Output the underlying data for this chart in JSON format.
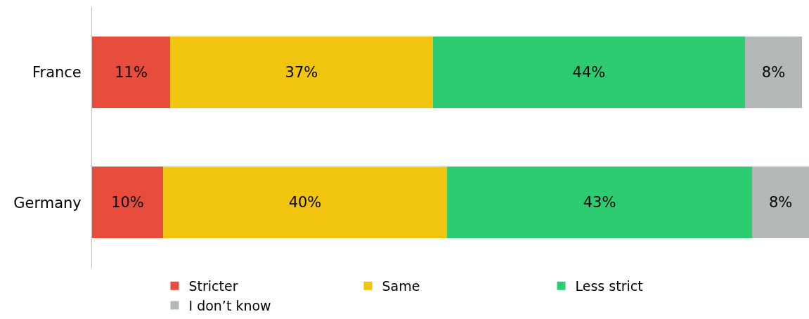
{
  "chart_data": {
    "type": "bar",
    "orientation": "horizontal",
    "stacked": true,
    "categories": [
      "France",
      "Germany"
    ],
    "series": [
      {
        "name": "Stricter",
        "color": "#e74c3c",
        "values": [
          11,
          10
        ],
        "value_labels": [
          "11%",
          "10%"
        ]
      },
      {
        "name": "Same",
        "color": "#f1c40f",
        "values": [
          37,
          40
        ],
        "value_labels": [
          "37%",
          "40%"
        ]
      },
      {
        "name": "Less strict",
        "color": "#2ecc71",
        "values": [
          44,
          43
        ],
        "value_labels": [
          "44%",
          "43%"
        ]
      },
      {
        "name": "I don’t know",
        "color": "#b3b9b9",
        "values": [
          8,
          8
        ],
        "value_labels": [
          "8%",
          "8%"
        ]
      }
    ],
    "xlim": [
      0,
      101
    ],
    "tick_labels": "y",
    "grid": false,
    "legend": "bottom"
  }
}
